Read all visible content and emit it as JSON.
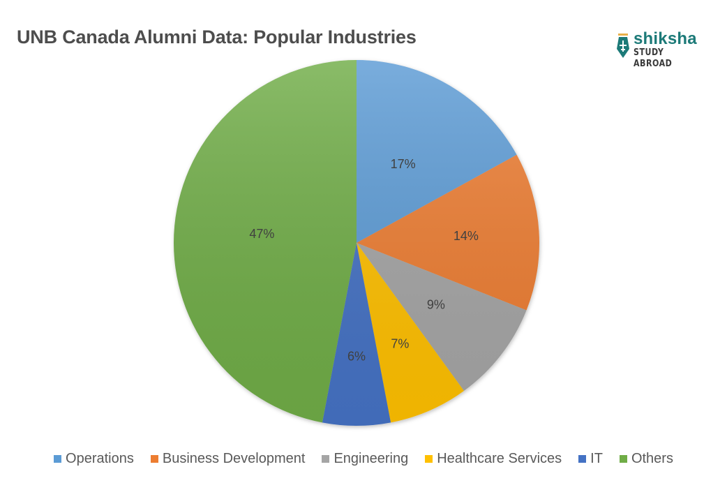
{
  "title": "UNB Canada Alumni Data: Popular Industries",
  "logo": {
    "name": "shiksha",
    "subtitle": "STUDY ABROAD",
    "icon": "pen-nib-plane-icon",
    "color": "#1c7a78"
  },
  "chart_data": {
    "type": "pie",
    "title": "UNB Canada Alumni Data: Popular Industries",
    "start_angle": "12 o'clock",
    "direction": "clockwise",
    "categories": [
      "Operations",
      "Business Development",
      "Engineering",
      "Healthcare Services",
      "IT",
      "Others"
    ],
    "values": [
      17,
      14,
      9,
      7,
      6,
      47
    ],
    "unit": "%",
    "data_labels": [
      "17%",
      "14%",
      "9%",
      "7%",
      "6%",
      "47%"
    ],
    "colors": [
      "#5b9bd5",
      "#ed7d31",
      "#a5a5a5",
      "#ffc000",
      "#4472c4",
      "#70ad47"
    ],
    "legend_position": "bottom"
  },
  "legend": {
    "items": [
      {
        "label": "Operations",
        "color": "#5b9bd5"
      },
      {
        "label": "Business Development",
        "color": "#ed7d31"
      },
      {
        "label": "Engineering",
        "color": "#a5a5a5"
      },
      {
        "label": "Healthcare Services",
        "color": "#ffc000"
      },
      {
        "label": "IT",
        "color": "#4472c4"
      },
      {
        "label": "Others",
        "color": "#70ad47"
      }
    ]
  }
}
